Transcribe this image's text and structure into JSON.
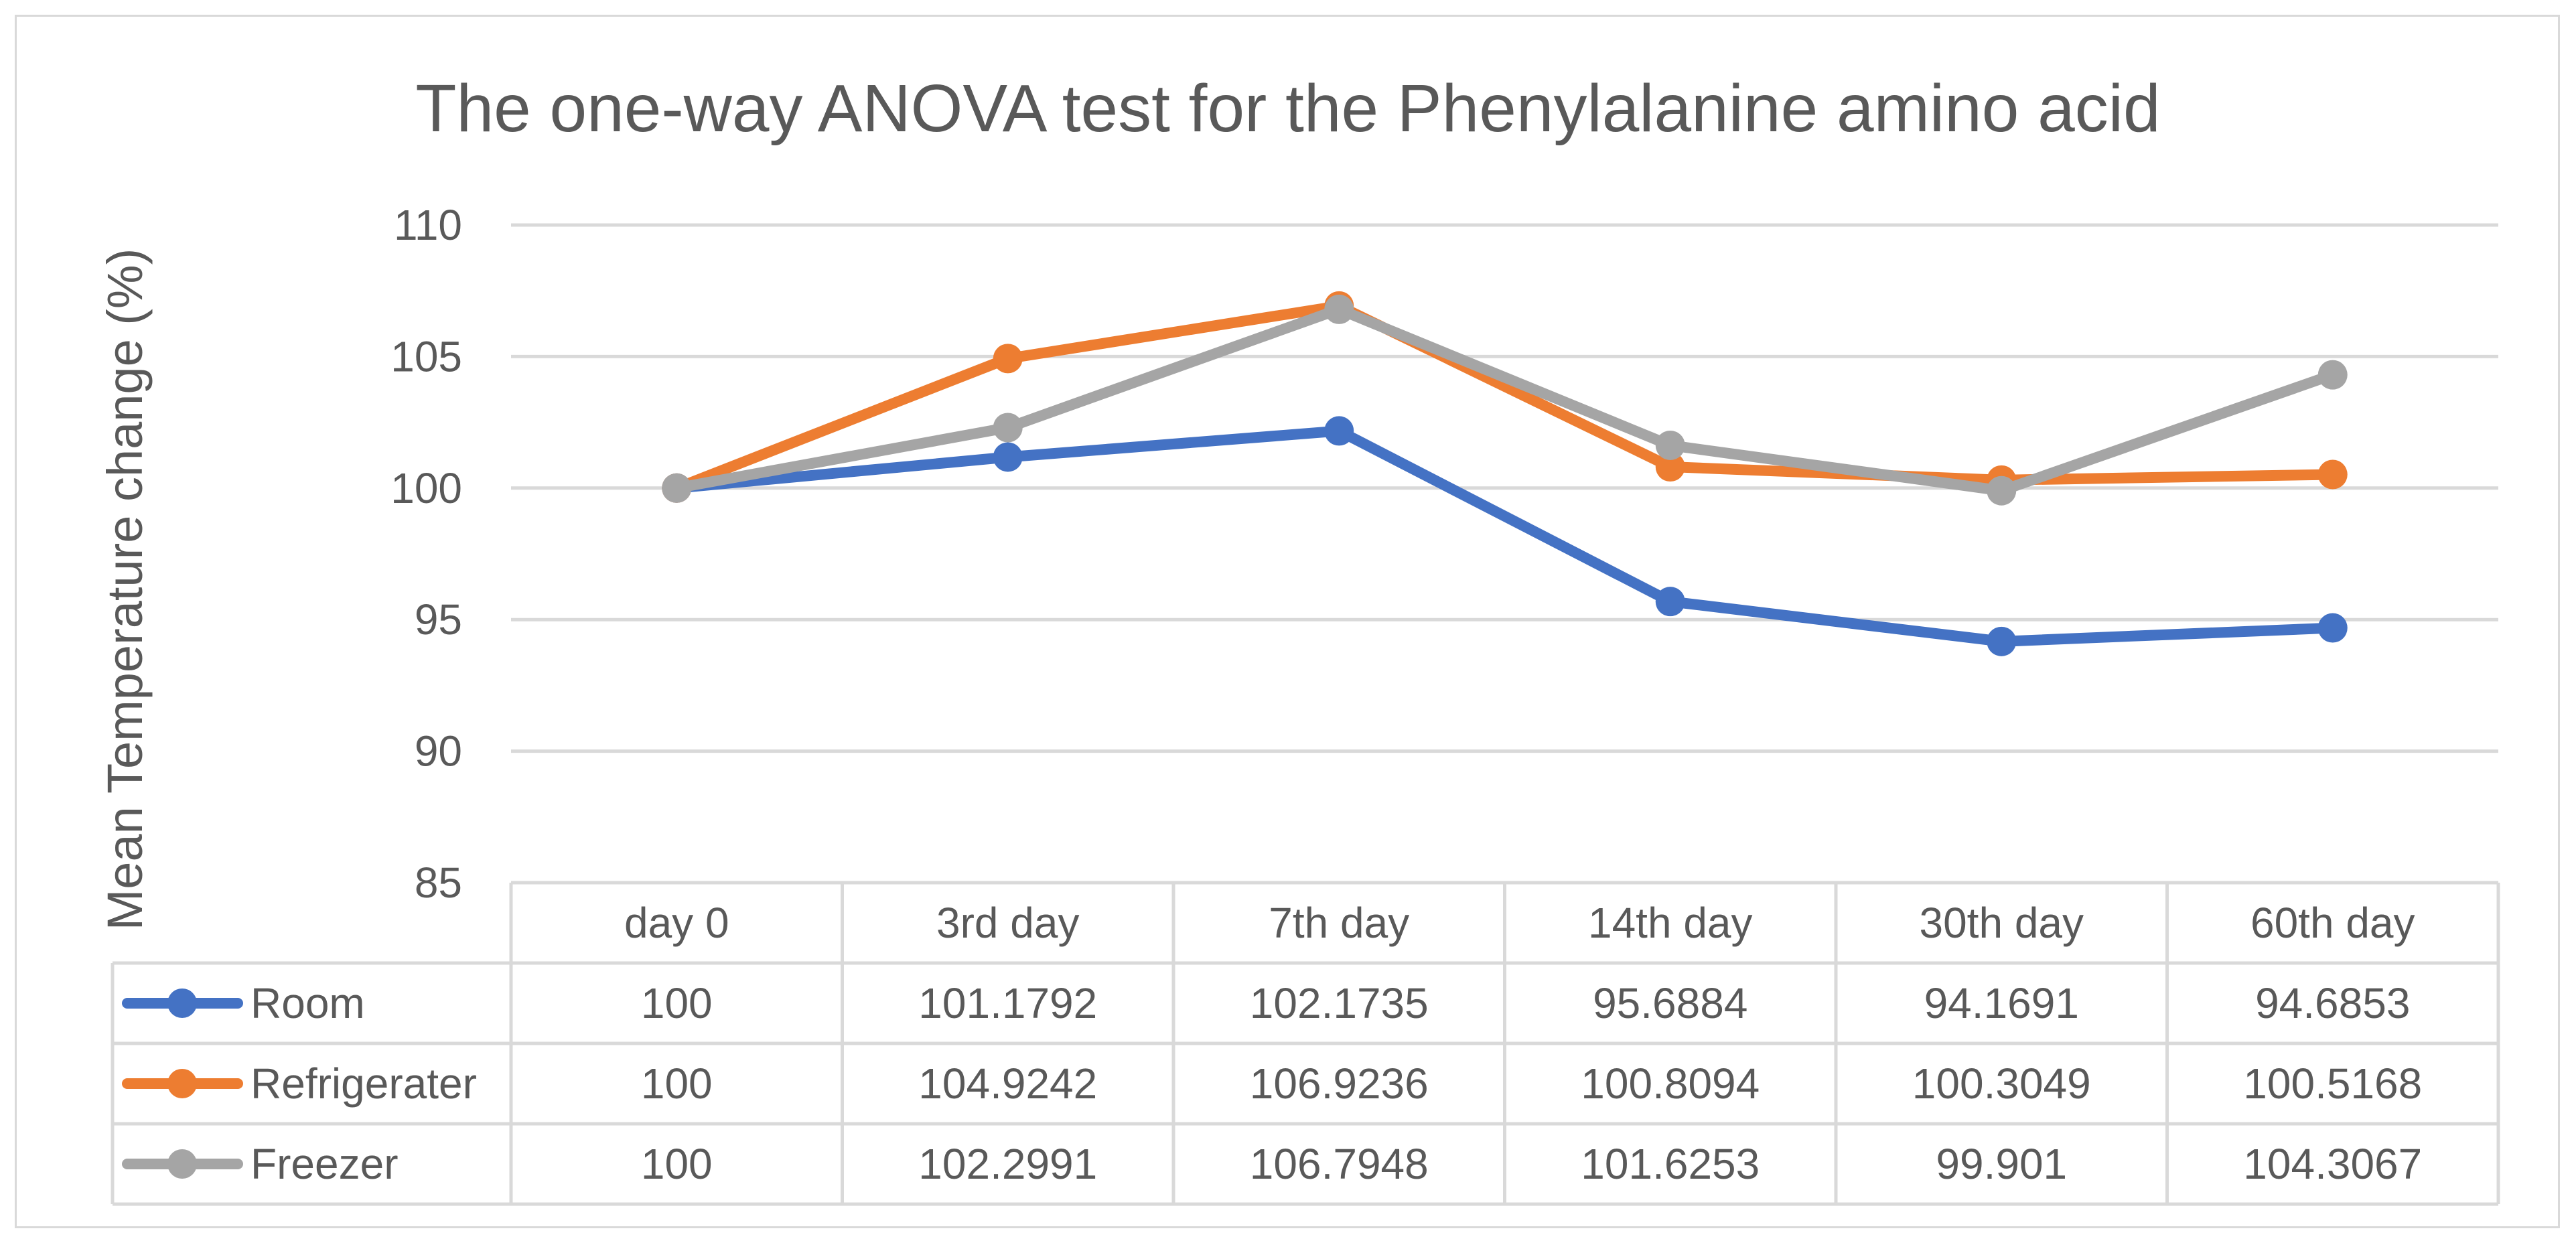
{
  "chart_data": {
    "type": "line",
    "title": "The one-way ANOVA test for the Phenylalanine amino acid",
    "xlabel": "",
    "ylabel": "Mean Temperature change (%)",
    "categories": [
      "day 0",
      "3rd day",
      "7th day",
      "14th day",
      "30th day",
      "60th day"
    ],
    "ylim": [
      85,
      110
    ],
    "yticks": [
      85,
      90,
      95,
      100,
      105,
      110
    ],
    "grid": true,
    "legend": "data-table",
    "series": [
      {
        "name": "Room",
        "color": "#4472C4",
        "values": [
          100,
          101.1792,
          102.1735,
          95.6884,
          94.1691,
          94.6853
        ],
        "labels": [
          "100",
          "101.1792",
          "102.1735",
          "95.6884",
          "94.1691",
          "94.6853"
        ]
      },
      {
        "name": "Refrigerater",
        "color": "#ED7D31",
        "values": [
          100,
          104.9242,
          106.9236,
          100.8094,
          100.3049,
          100.5168
        ],
        "labels": [
          "100",
          "104.9242",
          "106.9236",
          "100.8094",
          "100.3049",
          "100.5168"
        ]
      },
      {
        "name": "Freezer",
        "color": "#A5A5A5",
        "values": [
          100,
          102.2991,
          106.7948,
          101.6253,
          99.901,
          104.3067
        ],
        "labels": [
          "100",
          "102.2991",
          "106.7948",
          "101.6253",
          "99.901",
          "104.3067"
        ]
      }
    ]
  }
}
